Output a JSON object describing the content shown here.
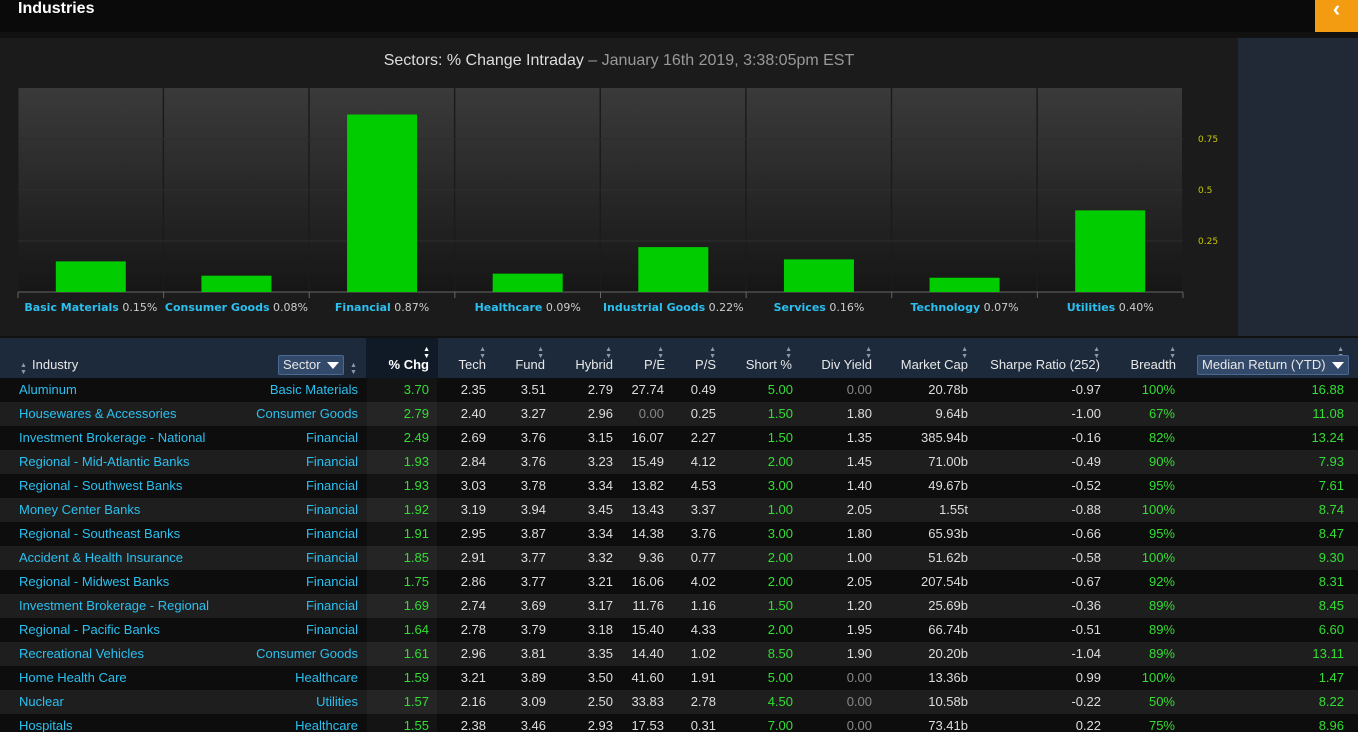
{
  "app": {
    "title": "Industries",
    "back_icon": "chevron-left-icon"
  },
  "chart_data": {
    "type": "bar",
    "title": "Sectors: % Change Intraday",
    "subtitle": "– January 16th 2019, 3:38:05pm EST",
    "categories": [
      "Basic Materials",
      "Consumer Goods",
      "Financial",
      "Healthcare",
      "Industrial Goods",
      "Services",
      "Technology",
      "Utilities"
    ],
    "value_labels": [
      "0.15%",
      "0.08%",
      "0.87%",
      "0.09%",
      "0.22%",
      "0.16%",
      "0.07%",
      "0.40%"
    ],
    "values": [
      0.15,
      0.08,
      0.87,
      0.09,
      0.22,
      0.16,
      0.07,
      0.4
    ],
    "ylim": [
      0,
      1.0
    ],
    "yticks": [
      0.25,
      0.5,
      0.75
    ],
    "ytick_labels": [
      "0.25",
      "0.5",
      "0.75"
    ],
    "bar_color": "#00cc00",
    "grid": true,
    "legend": "none"
  },
  "table": {
    "columns": {
      "industry": "Industry",
      "sector": "Sector",
      "chg": "% Chg",
      "tech": "Tech",
      "fund": "Fund",
      "hybrid": "Hybrid",
      "pe": "P/E",
      "ps": "P/S",
      "short": "Short %",
      "div": "Div Yield",
      "mcap": "Market Cap",
      "sharpe": "Sharpe Ratio (252)",
      "breadth": "Breadth",
      "median": "Median Return (YTD)"
    },
    "rows": [
      {
        "industry": "Aluminum",
        "sector": "Basic Materials",
        "chg": "3.70",
        "tech": "2.35",
        "fund": "3.51",
        "hybrid": "2.79",
        "pe": "27.74",
        "ps": "0.49",
        "short": "5.00",
        "div": "0.00",
        "mcap": "20.78b",
        "sharpe": "-0.97",
        "breadth": "100%",
        "median": "16.88"
      },
      {
        "industry": "Housewares & Accessories",
        "sector": "Consumer Goods",
        "chg": "2.79",
        "tech": "2.40",
        "fund": "3.27",
        "hybrid": "2.96",
        "pe": "0.00",
        "ps": "0.25",
        "short": "1.50",
        "div": "1.80",
        "mcap": "9.64b",
        "sharpe": "-1.00",
        "breadth": "67%",
        "median": "11.08"
      },
      {
        "industry": "Investment Brokerage - National",
        "sector": "Financial",
        "chg": "2.49",
        "tech": "2.69",
        "fund": "3.76",
        "hybrid": "3.15",
        "pe": "16.07",
        "ps": "2.27",
        "short": "1.50",
        "div": "1.35",
        "mcap": "385.94b",
        "sharpe": "-0.16",
        "breadth": "82%",
        "median": "13.24"
      },
      {
        "industry": "Regional - Mid-Atlantic Banks",
        "sector": "Financial",
        "chg": "1.93",
        "tech": "2.84",
        "fund": "3.76",
        "hybrid": "3.23",
        "pe": "15.49",
        "ps": "4.12",
        "short": "2.00",
        "div": "1.45",
        "mcap": "71.00b",
        "sharpe": "-0.49",
        "breadth": "90%",
        "median": "7.93"
      },
      {
        "industry": "Regional - Southwest Banks",
        "sector": "Financial",
        "chg": "1.93",
        "tech": "3.03",
        "fund": "3.78",
        "hybrid": "3.34",
        "pe": "13.82",
        "ps": "4.53",
        "short": "3.00",
        "div": "1.40",
        "mcap": "49.67b",
        "sharpe": "-0.52",
        "breadth": "95%",
        "median": "7.61"
      },
      {
        "industry": "Money Center Banks",
        "sector": "Financial",
        "chg": "1.92",
        "tech": "3.19",
        "fund": "3.94",
        "hybrid": "3.45",
        "pe": "13.43",
        "ps": "3.37",
        "short": "1.00",
        "div": "2.05",
        "mcap": "1.55t",
        "sharpe": "-0.88",
        "breadth": "100%",
        "median": "8.74"
      },
      {
        "industry": "Regional - Southeast Banks",
        "sector": "Financial",
        "chg": "1.91",
        "tech": "2.95",
        "fund": "3.87",
        "hybrid": "3.34",
        "pe": "14.38",
        "ps": "3.76",
        "short": "3.00",
        "div": "1.80",
        "mcap": "65.93b",
        "sharpe": "-0.66",
        "breadth": "95%",
        "median": "8.47"
      },
      {
        "industry": "Accident & Health Insurance",
        "sector": "Financial",
        "chg": "1.85",
        "tech": "2.91",
        "fund": "3.77",
        "hybrid": "3.32",
        "pe": "9.36",
        "ps": "0.77",
        "short": "2.00",
        "div": "1.00",
        "mcap": "51.62b",
        "sharpe": "-0.58",
        "breadth": "100%",
        "median": "9.30"
      },
      {
        "industry": "Regional - Midwest Banks",
        "sector": "Financial",
        "chg": "1.75",
        "tech": "2.86",
        "fund": "3.77",
        "hybrid": "3.21",
        "pe": "16.06",
        "ps": "4.02",
        "short": "2.00",
        "div": "2.05",
        "mcap": "207.54b",
        "sharpe": "-0.67",
        "breadth": "92%",
        "median": "8.31"
      },
      {
        "industry": "Investment Brokerage - Regional",
        "sector": "Financial",
        "chg": "1.69",
        "tech": "2.74",
        "fund": "3.69",
        "hybrid": "3.17",
        "pe": "11.76",
        "ps": "1.16",
        "short": "1.50",
        "div": "1.20",
        "mcap": "25.69b",
        "sharpe": "-0.36",
        "breadth": "89%",
        "median": "8.45"
      },
      {
        "industry": "Regional - Pacific Banks",
        "sector": "Financial",
        "chg": "1.64",
        "tech": "2.78",
        "fund": "3.79",
        "hybrid": "3.18",
        "pe": "15.40",
        "ps": "4.33",
        "short": "2.00",
        "div": "1.95",
        "mcap": "66.74b",
        "sharpe": "-0.51",
        "breadth": "89%",
        "median": "6.60"
      },
      {
        "industry": "Recreational Vehicles",
        "sector": "Consumer Goods",
        "chg": "1.61",
        "tech": "2.96",
        "fund": "3.81",
        "hybrid": "3.35",
        "pe": "14.40",
        "ps": "1.02",
        "short": "8.50",
        "div": "1.90",
        "mcap": "20.20b",
        "sharpe": "-1.04",
        "breadth": "89%",
        "median": "13.11"
      },
      {
        "industry": "Home Health Care",
        "sector": "Healthcare",
        "chg": "1.59",
        "tech": "3.21",
        "fund": "3.89",
        "hybrid": "3.50",
        "pe": "41.60",
        "ps": "1.91",
        "short": "5.00",
        "div": "0.00",
        "mcap": "13.36b",
        "sharpe": "0.99",
        "breadth": "100%",
        "median": "1.47"
      },
      {
        "industry": "Nuclear",
        "sector": "Utilities",
        "chg": "1.57",
        "tech": "2.16",
        "fund": "3.09",
        "hybrid": "2.50",
        "pe": "33.83",
        "ps": "2.78",
        "short": "4.50",
        "div": "0.00",
        "mcap": "10.58b",
        "sharpe": "-0.22",
        "breadth": "50%",
        "median": "8.22"
      },
      {
        "industry": "Hospitals",
        "sector": "Healthcare",
        "chg": "1.55",
        "tech": "2.38",
        "fund": "3.46",
        "hybrid": "2.93",
        "pe": "17.53",
        "ps": "0.31",
        "short": "7.00",
        "div": "0.00",
        "mcap": "73.41b",
        "sharpe": "0.22",
        "breadth": "75%",
        "median": "8.96"
      }
    ]
  }
}
